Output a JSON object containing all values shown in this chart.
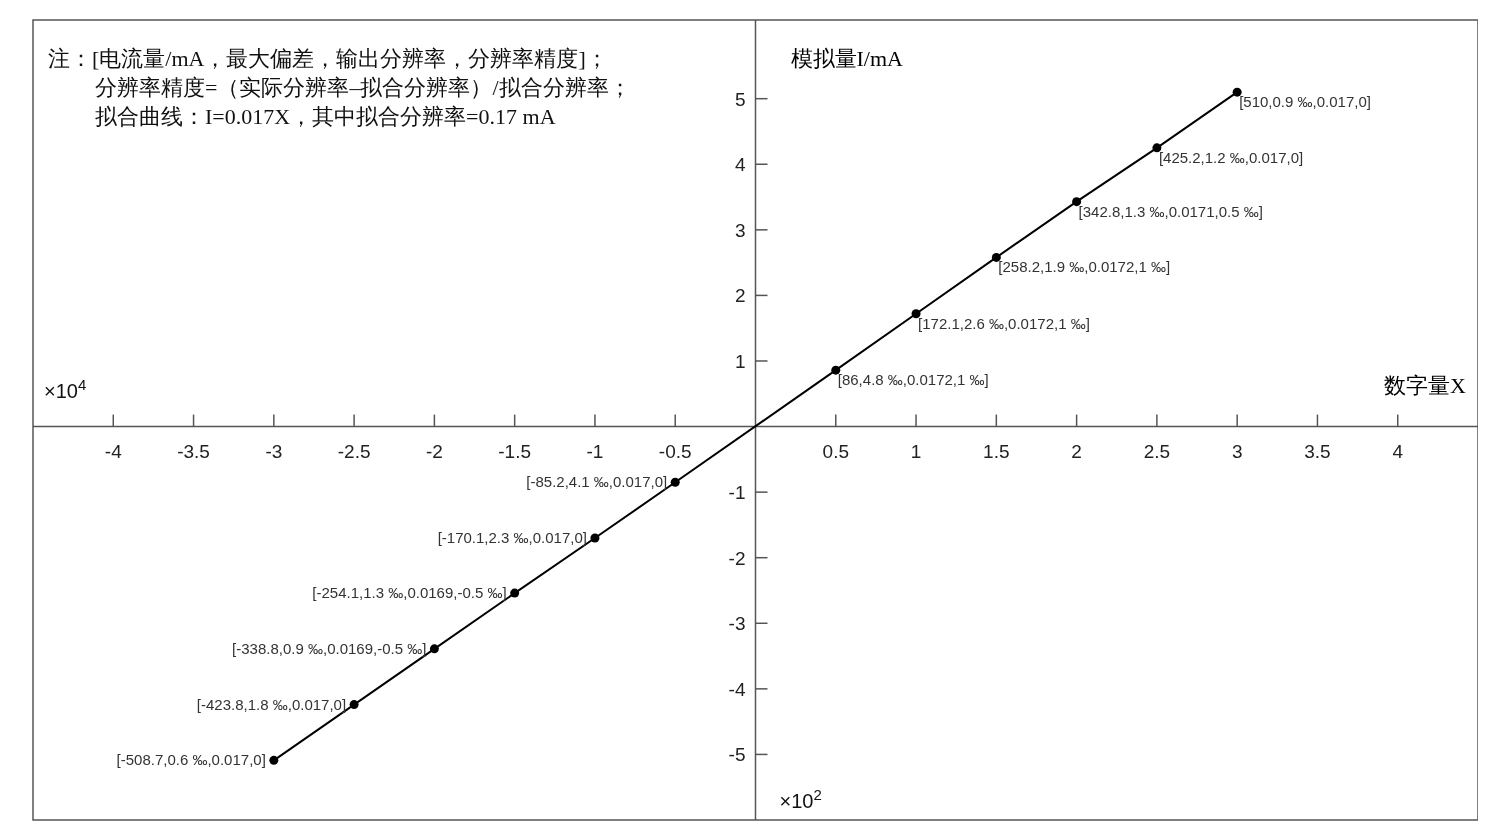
{
  "chart_data": {
    "type": "line",
    "xlabel": "数字量X",
    "ylabel": "模拟量I/mA",
    "x": [
      -3,
      -2.5,
      -2,
      -1.5,
      -1,
      -0.5,
      0.5,
      1,
      1.5,
      2,
      2.5,
      3
    ],
    "series": [
      {
        "color": "#000000",
        "values": [
          -5.09,
          -4.24,
          -3.39,
          -2.54,
          -1.7,
          -0.85,
          0.86,
          1.72,
          2.58,
          3.43,
          4.25,
          5.1
        ]
      }
    ],
    "marker": "circle",
    "line_style": "solid",
    "grid": false,
    "xlim": [
      -4.5,
      4.5
    ],
    "ylim": [
      -6,
      6.2
    ],
    "xticks": [
      -4,
      -3.5,
      -3,
      -2.5,
      -2,
      -1.5,
      -1,
      -0.5,
      0.5,
      1,
      1.5,
      2,
      2.5,
      3,
      3.5,
      4
    ],
    "yticks": [
      -5,
      -4,
      -3,
      -2,
      -1,
      1,
      2,
      3,
      4,
      5
    ],
    "annotations": [
      "注：[电流量/mA，最大偏差，输出分辨率，分辨率精度]；",
      "分辨率精度=（实际分辨率–拟合分辨率）/拟合分辨率；",
      "拟合曲线：I=0.017X，其中拟合分辨率=0.17 mA",
      "×10$^{4}$",
      "×10$^{2}$",
      {
        "text": "[-508.7,0.6 ‰,0.017,0]",
        "x": -3,
        "y": -5.09
      },
      {
        "text": "[-423.8,1.8 ‰,0.017,0]",
        "x": -2.5,
        "y": -4.24
      },
      {
        "text": "[-338.8,0.9 ‰,0.0169,-0.5 ‰]",
        "x": -2,
        "y": -3.39
      },
      {
        "text": "[-254.1,1.3 ‰,0.0169,-0.5 ‰]",
        "x": -1.5,
        "y": -2.54
      },
      {
        "text": "[-170.1,2.3 ‰,0.017,0]",
        "x": -1,
        "y": -1.7
      },
      {
        "text": "[-85.2,4.1 ‰,0.017,0]",
        "x": -0.5,
        "y": -0.85
      },
      {
        "text": "[86,4.8 ‰,0.0172,1 ‰]",
        "x": 0.5,
        "y": 0.86
      },
      {
        "text": "[172.1,2.6 ‰,0.0172,1 ‰]",
        "x": 1,
        "y": 1.72
      },
      {
        "text": "[258.2,1.9 ‰,0.0172,1 ‰]",
        "x": 1.5,
        "y": 2.58
      },
      {
        "text": "[342.8,1.3 ‰,0.0171,0.5 ‰]",
        "x": 2,
        "y": 3.43
      },
      {
        "text": "[425.2,1.2 ‰,0.017,0]",
        "x": 2.5,
        "y": 4.25
      },
      {
        "text": "[510,0.9 ‰,0.017,0]",
        "x": 3,
        "y": 5.1
      }
    ]
  }
}
